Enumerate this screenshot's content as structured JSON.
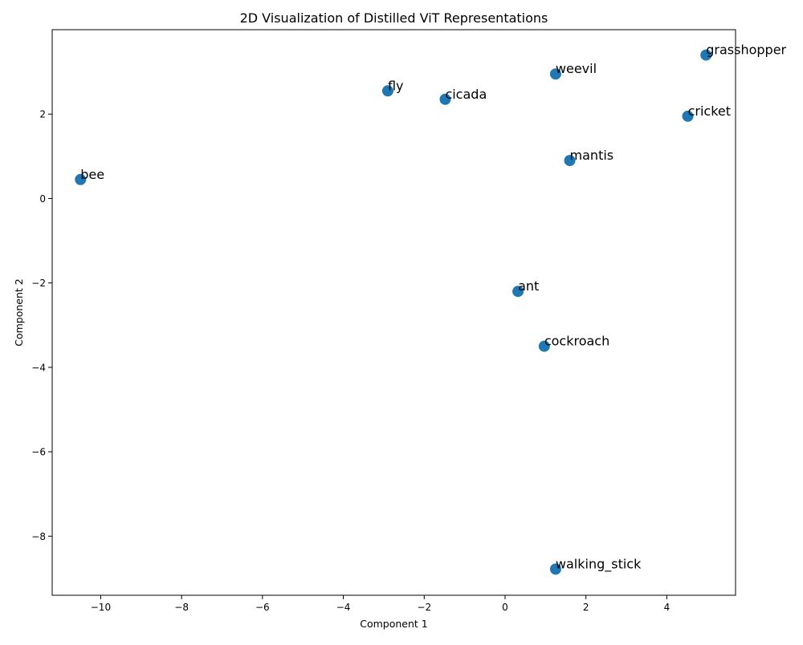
{
  "chart_data": {
    "type": "scatter",
    "title": "2D Visualization of Distilled ViT Representations",
    "xlabel": "Component 1",
    "ylabel": "Component 2",
    "xlim": [
      -11.2,
      5.7
    ],
    "ylim": [
      -9.4,
      4.0
    ],
    "xticks": [
      -10,
      -8,
      -6,
      -4,
      -2,
      0,
      2,
      4
    ],
    "yticks": [
      -8,
      -6,
      -4,
      -2,
      0,
      2
    ],
    "xtick_labels": [
      "−10",
      "−8",
      "−6",
      "−4",
      "−2",
      "0",
      "2",
      "4"
    ],
    "ytick_labels": [
      "−8",
      "−6",
      "−4",
      "−2",
      "0",
      "2"
    ],
    "grid": false,
    "marker_color": "#1f77b4",
    "points": [
      {
        "label": "grasshopper",
        "x": 4.97,
        "y": 3.4
      },
      {
        "label": "weevil",
        "x": 1.25,
        "y": 2.95
      },
      {
        "label": "fly",
        "x": -2.9,
        "y": 2.55
      },
      {
        "label": "cicada",
        "x": -1.48,
        "y": 2.35
      },
      {
        "label": "cricket",
        "x": 4.52,
        "y": 1.95
      },
      {
        "label": "mantis",
        "x": 1.6,
        "y": 0.9
      },
      {
        "label": "bee",
        "x": -10.5,
        "y": 0.45
      },
      {
        "label": "ant",
        "x": 0.32,
        "y": -2.2
      },
      {
        "label": "cockroach",
        "x": 0.97,
        "y": -3.5
      },
      {
        "label": "walking_stick",
        "x": 1.25,
        "y": -8.78
      }
    ]
  }
}
